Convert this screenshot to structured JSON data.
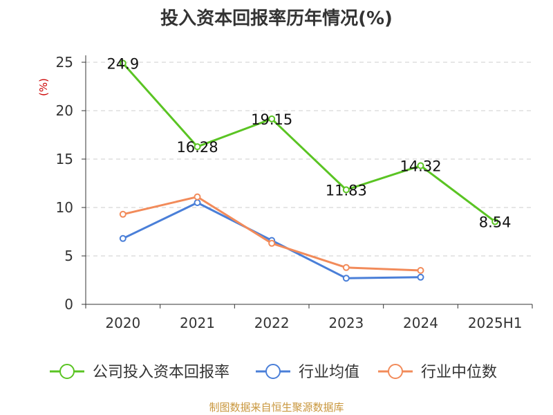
{
  "title": "投入资本回报率历年情况(%)",
  "source": "制图数据来自恒生聚源数据库",
  "colors": {
    "company": "#5ac423",
    "average": "#4a7fd8",
    "median": "#f28b5a",
    "grid": "#cccccc",
    "axis": "#333333",
    "unit": "#cc0000"
  },
  "chart_data": {
    "type": "line",
    "title": "投入资本回报率历年情况(%)",
    "ylabel": "(%)",
    "xlabel": "",
    "categories": [
      "2020",
      "2021",
      "2022",
      "2023",
      "2024",
      "2025H1"
    ],
    "ylim": [
      0,
      25
    ],
    "yticks": [
      0,
      5,
      10,
      15,
      20,
      25
    ],
    "grid": true,
    "legend_position": "bottom",
    "series": [
      {
        "name": "公司投入资本回报率",
        "values": [
          24.9,
          16.28,
          19.15,
          11.83,
          14.32,
          8.54
        ],
        "labels": [
          "24.9",
          "16.28",
          "19.15",
          "11.83",
          "14.32",
          "8.54"
        ],
        "color": "#5ac423"
      },
      {
        "name": "行业均值",
        "values": [
          6.8,
          10.5,
          6.6,
          2.7,
          2.8,
          null
        ],
        "color": "#4a7fd8"
      },
      {
        "name": "行业中位数",
        "values": [
          9.3,
          11.1,
          6.3,
          3.8,
          3.5,
          null
        ],
        "color": "#f28b5a"
      }
    ]
  }
}
